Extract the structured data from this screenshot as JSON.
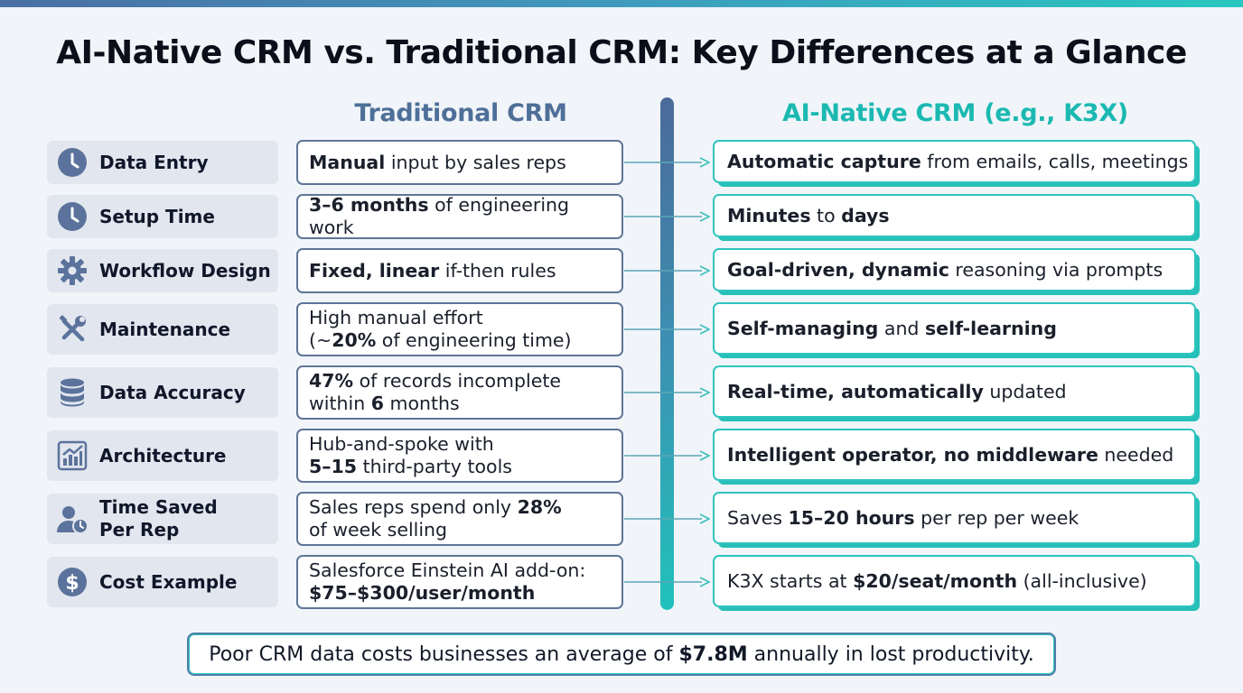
{
  "title": "AI-Native CRM vs. Traditional CRM: Key Differences at a Glance",
  "columns": {
    "traditional": "Traditional CRM",
    "ai_native": "AI-Native CRM (e.g., K3X)"
  },
  "rows": [
    {
      "label": "Data Entry",
      "icon": "clock-icon",
      "traditional": [
        {
          "t": "Manual",
          "b": true
        },
        {
          "t": " input by sales reps"
        }
      ],
      "ai_native": [
        {
          "t": "Automatic capture",
          "b": true
        },
        {
          "t": " from emails, calls, meetings"
        }
      ]
    },
    {
      "label": "Setup Time",
      "icon": "clock-icon",
      "traditional": [
        {
          "t": "3–6 months",
          "b": true
        },
        {
          "t": " of engineering work"
        }
      ],
      "ai_native": [
        {
          "t": "Minutes",
          "b": true
        },
        {
          "t": " to "
        },
        {
          "t": "days",
          "b": true
        }
      ]
    },
    {
      "label": "Workflow Design",
      "icon": "gear-icon",
      "traditional": [
        {
          "t": "Fixed, linear",
          "b": true
        },
        {
          "t": " if-then rules"
        }
      ],
      "ai_native": [
        {
          "t": "Goal-driven, dynamic",
          "b": true
        },
        {
          "t": " reasoning via prompts"
        }
      ]
    },
    {
      "label": "Maintenance",
      "icon": "tools-icon",
      "traditional": [
        {
          "t": "High manual effort"
        },
        {
          "br": true
        },
        {
          "t": "(~"
        },
        {
          "t": "20%",
          "b": true
        },
        {
          "t": " of engineering time)"
        }
      ],
      "ai_native": [
        {
          "t": "Self-managing",
          "b": true
        },
        {
          "t": " and "
        },
        {
          "t": "self-learning",
          "b": true
        }
      ]
    },
    {
      "label": "Data Accuracy",
      "icon": "database-icon",
      "traditional": [
        {
          "t": "47%",
          "b": true
        },
        {
          "t": " of records incomplete"
        },
        {
          "br": true
        },
        {
          "t": "within "
        },
        {
          "t": "6",
          "b": true
        },
        {
          "t": " months"
        }
      ],
      "ai_native": [
        {
          "t": "Real-time, automatically",
          "b": true
        },
        {
          "t": " updated"
        }
      ]
    },
    {
      "label": "Architecture",
      "icon": "bar-chart-icon",
      "traditional": [
        {
          "t": "Hub-and-spoke with"
        },
        {
          "br": true
        },
        {
          "t": "5–15",
          "b": true
        },
        {
          "t": " third-party tools"
        }
      ],
      "ai_native": [
        {
          "t": "Intelligent operator, no middleware",
          "b": true
        },
        {
          "t": " needed"
        }
      ]
    },
    {
      "label": "Time Saved Per Rep",
      "label_lines": [
        "Time Saved",
        "Per Rep"
      ],
      "icon": "user-clock-icon",
      "traditional": [
        {
          "t": "Sales reps spend only "
        },
        {
          "t": "28%",
          "b": true
        },
        {
          "br": true
        },
        {
          "t": "of week selling"
        }
      ],
      "ai_native": [
        {
          "t": "Saves "
        },
        {
          "t": "15–20 hours",
          "b": true
        },
        {
          "t": " per rep per week"
        }
      ]
    },
    {
      "label": "Cost Example",
      "icon": "dollar-icon",
      "traditional": [
        {
          "t": "Salesforce Einstein AI add-on:"
        },
        {
          "br": true
        },
        {
          "t": "$75–$300/user/month",
          "b": true
        }
      ],
      "ai_native": [
        {
          "t": "K3X starts at "
        },
        {
          "t": "$20/seat/month",
          "b": true
        },
        {
          "t": " (all-inclusive)"
        }
      ]
    }
  ],
  "footer": [
    {
      "t": "Poor CRM data costs businesses an average of "
    },
    {
      "t": "$7.8M",
      "b": true
    },
    {
      "t": " annually in lost productivity."
    }
  ],
  "colors": {
    "traditional_accent": "#4e6f98",
    "ai_accent": "#1bb9b2",
    "label_bg": "#e2e6ee"
  }
}
